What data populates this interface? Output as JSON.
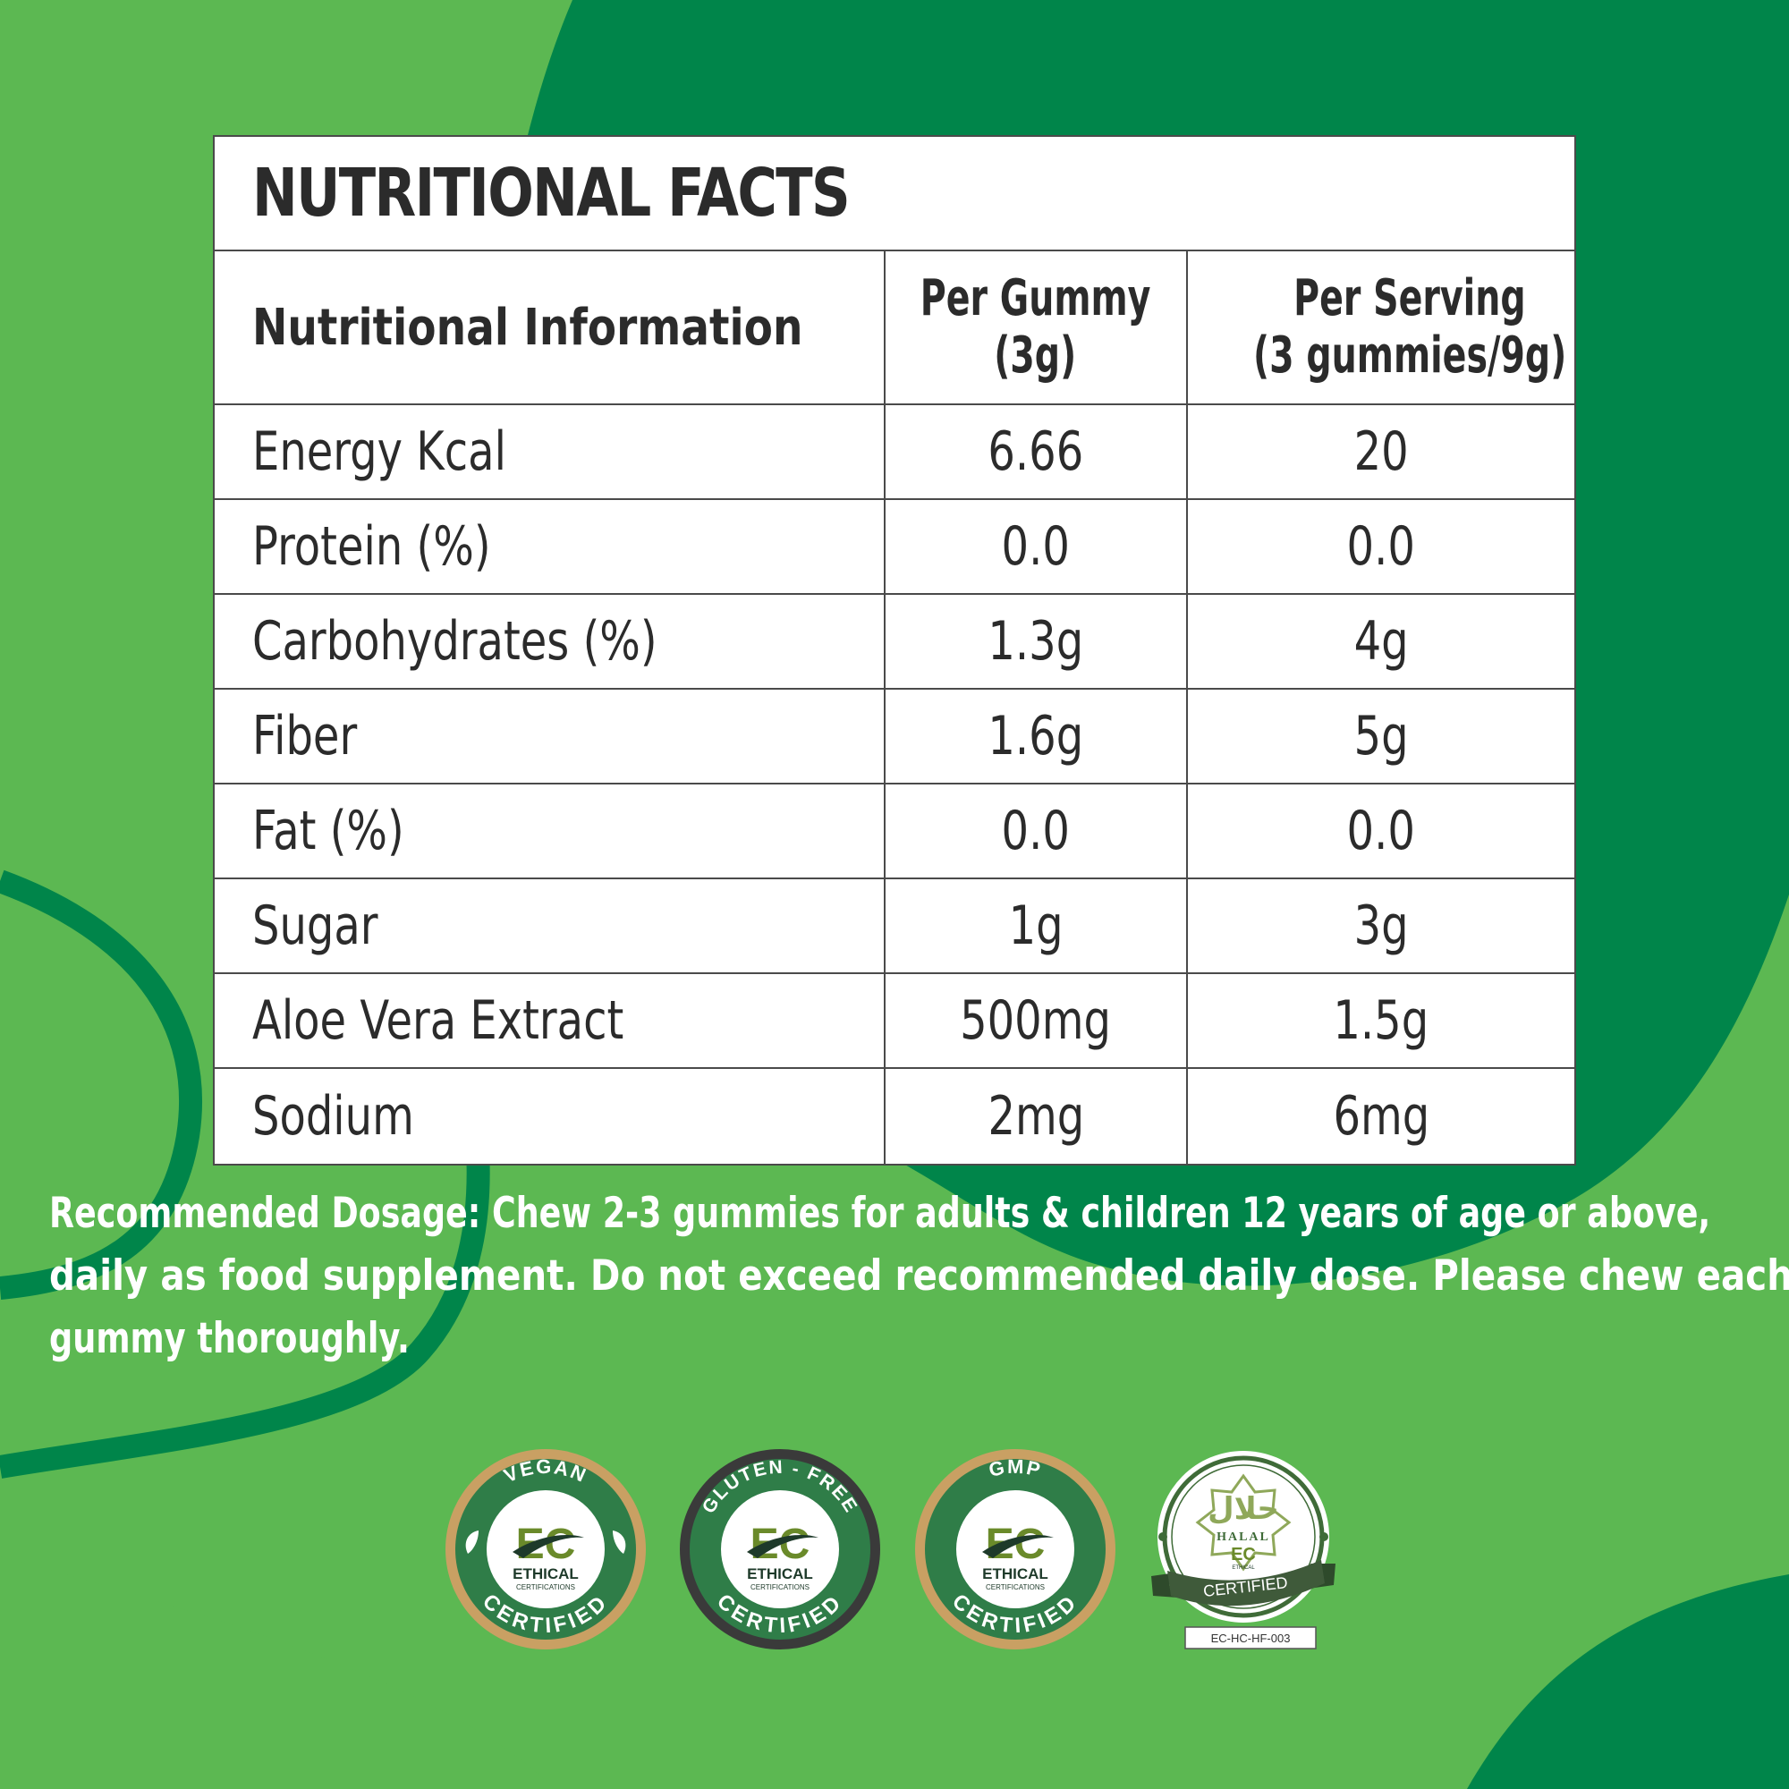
{
  "facts": {
    "title": "NUTRITIONAL FACTS",
    "headers": {
      "col1": "Nutritional Information",
      "col2_line1": "Per Gummy",
      "col2_line2": "(3g)",
      "col3_line1": "Per Serving",
      "col3_line2": "(3 gummies/9g)"
    },
    "rows": [
      {
        "name": "Energy Kcal",
        "per_gummy": "6.66",
        "per_serving": "20"
      },
      {
        "name": "Protein (%)",
        "per_gummy": "0.0",
        "per_serving": "0.0"
      },
      {
        "name": "Carbohydrates (%)",
        "per_gummy": "1.3g",
        "per_serving": "4g"
      },
      {
        "name": "Fiber",
        "per_gummy": "1.6g",
        "per_serving": "5g"
      },
      {
        "name": "Fat (%)",
        "per_gummy": "0.0",
        "per_serving": "0.0"
      },
      {
        "name": "Sugar",
        "per_gummy": "1g",
        "per_serving": "3g"
      },
      {
        "name": "Aloe Vera Extract",
        "per_gummy": "500mg",
        "per_serving": "1.5g"
      },
      {
        "name": "Sodium",
        "per_gummy": "2mg",
        "per_serving": "6mg"
      }
    ]
  },
  "dosage": {
    "line1": "Recommended Dosage: Chew 2-3 gummies for adults & children 12 years of age or above,",
    "line2": "daily as food supplement. Do not exceed recommended daily dose. Please chew each",
    "line3": "gummy thoroughly."
  },
  "badges": [
    {
      "top_text": "VEGAN",
      "logo": "EC",
      "brand": "ETHICAL",
      "brand_sub": "CERTIFICATIONS",
      "bottom_text": "CERTIFIED",
      "ring_color": "#c9a063",
      "inner_color": "#2f7d48"
    },
    {
      "top_text": "GLUTEN - FREE",
      "logo": "EC",
      "brand": "ETHICAL",
      "brand_sub": "CERTIFICATIONS",
      "bottom_text": "CERTIFIED",
      "ring_color": "#3a3a3a",
      "inner_color": "#2f7d48"
    },
    {
      "top_text": "GMP",
      "logo": "EC",
      "brand": "ETHICAL",
      "brand_sub": "CERTIFICATIONS",
      "bottom_text": "CERTIFIED",
      "ring_color": "#c9a063",
      "inner_color": "#2f7d48"
    },
    {
      "arabic": "حلال",
      "halal": "HALAL",
      "logo": "EC",
      "brand": "ETHICAL",
      "ribbon": "CERTIFIED",
      "code": "EC-HC-HF-003"
    }
  ],
  "colors": {
    "bg_light": "#5cb852",
    "bg_dark": "#00854a",
    "table_border": "#4a4a4a",
    "text_dark": "#2b2b2b"
  }
}
